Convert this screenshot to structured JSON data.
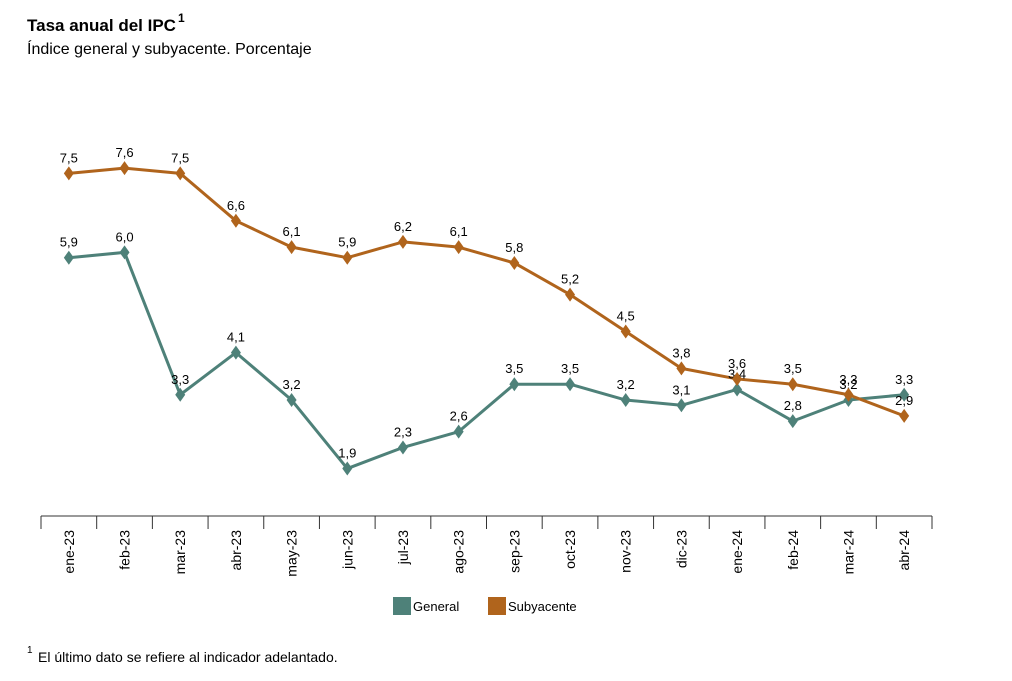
{
  "chart_data": {
    "type": "line",
    "title": "Tasa anual del IPC",
    "title_superscript": "1",
    "subtitle": "Índice general y subyacente. Porcentaje",
    "categories": [
      "ene-23",
      "feb-23",
      "mar-23",
      "abr-23",
      "may-23",
      "jun-23",
      "jul-23",
      "ago-23",
      "sep-23",
      "oct-23",
      "nov-23",
      "dic-23",
      "ene-24",
      "feb-24",
      "mar-24",
      "abr-24"
    ],
    "series": [
      {
        "name": "General",
        "color": "#4e8179",
        "values": [
          5.9,
          6.0,
          3.3,
          4.1,
          3.2,
          1.9,
          2.3,
          2.6,
          3.5,
          3.5,
          3.2,
          3.1,
          3.4,
          2.8,
          3.2,
          3.3
        ],
        "value_labels": [
          "5,9",
          "6,0",
          "3,3",
          "4,1",
          "3,2",
          "1,9",
          "2,3",
          "2,6",
          "3,5",
          "3,5",
          "3,2",
          "3,1",
          "3,4",
          "2,8",
          "3,2",
          "3,3"
        ]
      },
      {
        "name": "Subyacente",
        "color": "#b0641c",
        "values": [
          7.5,
          7.6,
          7.5,
          6.6,
          6.1,
          5.9,
          6.2,
          6.1,
          5.8,
          5.2,
          4.5,
          3.8,
          3.6,
          3.5,
          3.3,
          2.9
        ],
        "value_labels": [
          "7,5",
          "7,6",
          "7,5",
          "6,6",
          "6,1",
          "5,9",
          "6,2",
          "6,1",
          "5,8",
          "5,2",
          "4,5",
          "3,8",
          "3,6",
          "3,5",
          "3,3",
          "2,9"
        ]
      }
    ],
    "ylim": [
      1,
      8
    ],
    "legend": "bottom",
    "footnote_marker": "1",
    "footnote": "El último dato se refiere al indicador adelantado."
  }
}
